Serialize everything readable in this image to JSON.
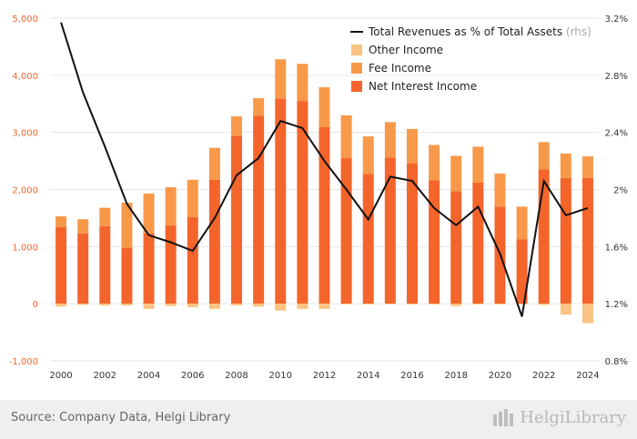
{
  "chart_data": {
    "type": "bar",
    "x": [
      "2000",
      "2001",
      "2002",
      "2003",
      "2004",
      "2005",
      "2006",
      "2007",
      "2008",
      "2009",
      "2010",
      "2011",
      "2012",
      "2013",
      "2014",
      "2015",
      "2016",
      "2017",
      "2018",
      "2019",
      "2020",
      "2021",
      "2022",
      "2023",
      "2024"
    ],
    "xticks": [
      "2000",
      "2002",
      "2004",
      "2006",
      "2008",
      "2010",
      "2012",
      "2014",
      "2016",
      "2018",
      "2020",
      "2022",
      "2024"
    ],
    "stacked": true,
    "series": [
      {
        "name": "Net Interest Income",
        "color": "#f4652c",
        "values": [
          1340,
          1230,
          1360,
          980,
          1230,
          1370,
          1520,
          2170,
          2940,
          3290,
          3590,
          3550,
          3090,
          2550,
          2270,
          2560,
          2460,
          2160,
          1970,
          2120,
          1700,
          1130,
          2350,
          2200,
          2200
        ]
      },
      {
        "name": "Fee Income",
        "color": "#f8994a",
        "values": [
          190,
          250,
          320,
          790,
          700,
          670,
          650,
          560,
          340,
          310,
          690,
          650,
          700,
          750,
          660,
          620,
          600,
          620,
          620,
          630,
          580,
          570,
          480,
          430,
          380
        ]
      },
      {
        "name": "Other Income",
        "color": "#fbc482",
        "values": [
          -50,
          -20,
          -30,
          -30,
          -90,
          -40,
          -60,
          -90,
          -30,
          -50,
          -120,
          -90,
          -90,
          -10,
          -10,
          -10,
          -10,
          -10,
          -40,
          -10,
          -10,
          -10,
          -20,
          -190,
          -340
        ]
      }
    ],
    "line": {
      "name": "Total Revenues as % of Total Assets",
      "name_suffix": "(rhs)",
      "axis": "right",
      "color": "#111111",
      "values": [
        3.17,
        2.68,
        2.3,
        1.9,
        1.68,
        1.63,
        1.57,
        1.8,
        2.1,
        2.22,
        2.48,
        2.43,
        2.2,
        2.0,
        1.79,
        2.09,
        2.06,
        1.87,
        1.75,
        1.88,
        1.55,
        1.11,
        2.06,
        1.82,
        1.87
      ]
    },
    "y_left": {
      "min": -1000,
      "max": 5000,
      "ticks": [
        "-1,000",
        "0",
        "1,000",
        "2,000",
        "3,000",
        "4,000",
        "5,000"
      ]
    },
    "y_right": {
      "min": 0.8,
      "max": 3.2,
      "ticks": [
        "0.8%",
        "1.2%",
        "1.6%",
        "2%",
        "2.4%",
        "2.8%",
        "3.2%"
      ]
    },
    "legend_position": "top-right"
  },
  "colors": {
    "left_axis_text": "#f4652c",
    "axis_text": "#333333",
    "grid": "#e6e6e6"
  },
  "footer": {
    "source": "Source: Company Data, Helgi Library",
    "brand": "HelgiLibrary"
  }
}
